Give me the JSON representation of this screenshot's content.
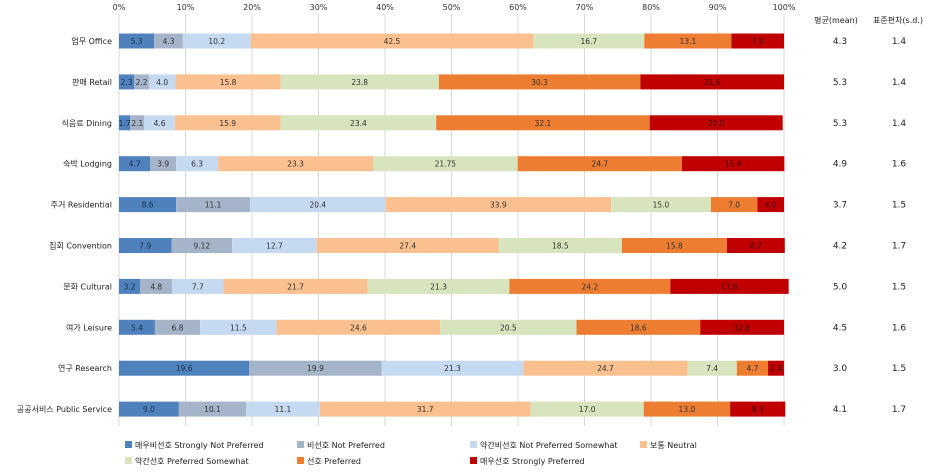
{
  "chart_data": {
    "type": "bar",
    "orientation": "horizontal",
    "stacked": true,
    "percent": true,
    "x_ticks": [
      "0%",
      "10%",
      "20%",
      "30%",
      "40%",
      "50%",
      "60%",
      "70%",
      "80%",
      "90%",
      "100%"
    ],
    "xlim": [
      0,
      100
    ],
    "grid": true,
    "categories": [
      "업무 Office",
      "판매 Retail",
      "식음료 Dining",
      "숙박 Lodging",
      "주거 Residential",
      "집회 Convention",
      "문화 Cultural",
      "여가 Leisure",
      "연구 Research",
      "공공서비스 Public Service"
    ],
    "series": [
      {
        "name": "매우비선호 Strongly Not Preferred",
        "color": "#4f81bd",
        "values": [
          5.3,
          2.3,
          1.7,
          4.7,
          8.6,
          7.9,
          3.2,
          5.4,
          19.6,
          9.0
        ],
        "labels": [
          "5.3",
          "2.3",
          "1.7",
          "4.7",
          "8.6",
          "7.9",
          "3.2",
          "5.4",
          "19.6",
          "9.0"
        ]
      },
      {
        "name": "비선호 Not Preferred",
        "color": "#a5b4c9",
        "values": [
          4.3,
          2.2,
          2.1,
          3.9,
          11.1,
          9.12,
          4.8,
          6.8,
          19.9,
          10.1
        ],
        "labels": [
          "4.3",
          "2.2",
          "2.1",
          "3.9",
          "11.1",
          "9.12",
          "4.8",
          "6.8",
          "19.9",
          "10.1"
        ]
      },
      {
        "name": "약간비선호 Not Preferred Somewhat",
        "color": "#c5d9f1",
        "values": [
          10.2,
          4.0,
          4.6,
          6.3,
          20.4,
          12.7,
          7.7,
          11.5,
          21.3,
          11.1
        ],
        "labels": [
          "10.2",
          "4.0",
          "4.6",
          "6.3",
          "20.4",
          "12.7",
          "7.7",
          "11.5",
          "21.3",
          "11.1"
        ]
      },
      {
        "name": "보통 Neutral",
        "color": "#fac090",
        "values": [
          42.5,
          15.8,
          15.9,
          23.3,
          33.9,
          27.4,
          21.7,
          24.6,
          24.7,
          31.7
        ],
        "labels": [
          "42.5",
          "15.8",
          "15.9",
          "23.3",
          "33.9",
          "27.4",
          "21.7",
          "24.6",
          "24.7",
          "31.7"
        ]
      },
      {
        "name": "약간선호 Preferred Somewhat",
        "color": "#d7e4bd",
        "values": [
          16.7,
          23.8,
          23.4,
          21.75,
          15.0,
          18.5,
          21.3,
          20.5,
          7.4,
          17.0
        ],
        "labels": [
          "16.7",
          "23.8",
          "23.4",
          "21.75",
          "15.0",
          "18.5",
          "21.3",
          "20.5",
          "7.4",
          "17.0"
        ]
      },
      {
        "name": "선호 Preferred",
        "color": "#ed7d31",
        "values": [
          13.1,
          30.3,
          32.1,
          24.7,
          7.0,
          15.8,
          24.2,
          18.6,
          4.7,
          13.0
        ],
        "labels": [
          "13.1",
          "30.3",
          "32.1",
          "24.7",
          "7.0",
          "15.8",
          "24.2",
          "18.6",
          "4.7",
          "13.0"
        ]
      },
      {
        "name": "매우선호 Strongly Preferred",
        "color": "#c00000",
        "values": [
          7.9,
          21.6,
          20.0,
          15.4,
          4.0,
          8.7,
          17.8,
          12.6,
          2.4,
          8.3
        ],
        "labels": [
          "7.9",
          "21.6",
          "20.0",
          "15.4",
          "4.0",
          "8.7",
          "17.8",
          "12.6",
          "2.4",
          "8.3"
        ]
      }
    ],
    "stats": {
      "mean_header": "평균(mean)",
      "sd_header": "표준편차(s.d.)",
      "mean": [
        "4.3",
        "5.3",
        "5.3",
        "4.9",
        "3.7",
        "4.2",
        "5.0",
        "4.5",
        "3.0",
        "4.1"
      ],
      "sd": [
        "1.4",
        "1.4",
        "1.4",
        "1.6",
        "1.5",
        "1.7",
        "1.5",
        "1.6",
        "1.5",
        "1.7"
      ]
    },
    "legend_position": "bottom"
  }
}
